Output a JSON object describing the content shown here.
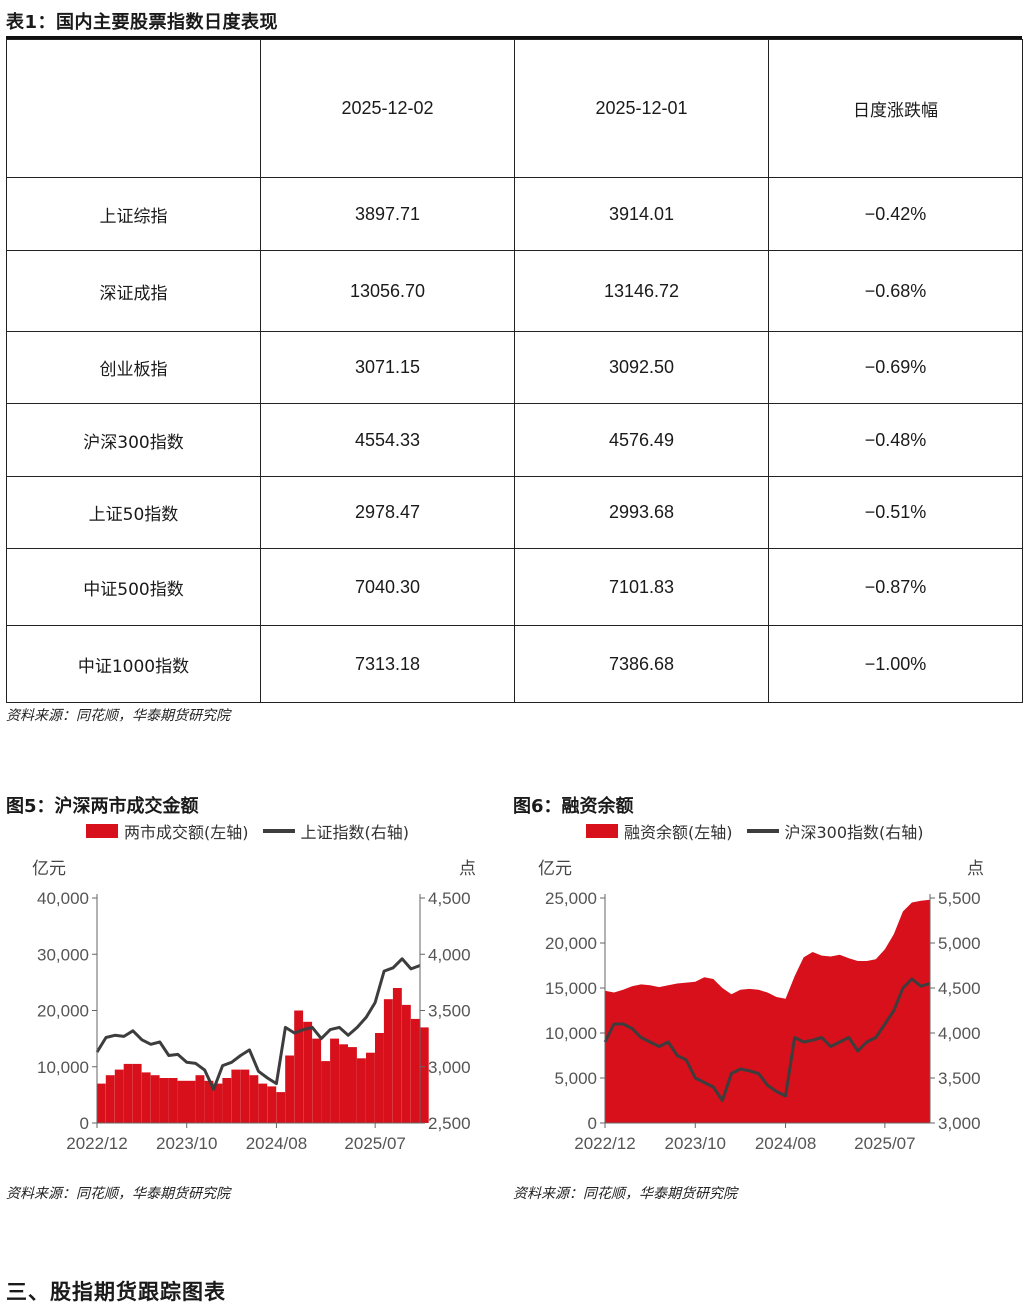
{
  "table": {
    "title": "表1：国内主要股票指数日度表现",
    "headers": [
      "",
      "2025-12-02",
      "2025-12-01",
      "日度涨跌幅"
    ],
    "rows": [
      [
        "上证综指",
        "3897.71",
        "3914.01",
        "−0.42%"
      ],
      [
        "深证成指",
        "13056.70",
        "13146.72",
        "−0.68%"
      ],
      [
        "创业板指",
        "3071.15",
        "3092.50",
        "−0.69%"
      ],
      [
        "沪深300指数",
        "4554.33",
        "4576.49",
        "−0.48%"
      ],
      [
        "上证50指数",
        "2978.47",
        "2993.68",
        "−0.51%"
      ],
      [
        "中证500指数",
        "7040.30",
        "7101.83",
        "−0.87%"
      ],
      [
        "中证1000指数",
        "7313.18",
        "7386.68",
        "−1.00%"
      ]
    ],
    "source": "资料来源：同花顺，华泰期货研究院"
  },
  "section_heading": "三、股指期货跟踪图表",
  "colors": {
    "bar": "#d7101b",
    "line": "#3d3d3d",
    "axis": "#666666",
    "text": "#555555"
  },
  "chart_data": [
    {
      "type": "bar",
      "title": "图5：沪深两市成交金额",
      "source": "资料来源：同花顺，华泰期货研究院",
      "left_unit": "亿元",
      "right_unit": "点",
      "x_ticks": [
        "2022/12",
        "2023/10",
        "2024/08",
        "2025/07"
      ],
      "x_range": [
        "2022-12",
        "2025-12"
      ],
      "y_left": {
        "min": 0,
        "max": 40000,
        "ticks": [
          "0",
          "10,000",
          "20,000",
          "30,000",
          "40,000"
        ]
      },
      "y_right": {
        "min": 2500,
        "max": 4500,
        "ticks": [
          "2,500",
          "3,000",
          "3,500",
          "4,000",
          "4,500"
        ]
      },
      "series": [
        {
          "name": "两市成交额(左轴)",
          "type": "bar",
          "axis": "left",
          "x": [
            "2022-12",
            "2023-01",
            "2023-02",
            "2023-03",
            "2023-04",
            "2023-05",
            "2023-06",
            "2023-07",
            "2023-08",
            "2023-09",
            "2023-10",
            "2023-11",
            "2023-12",
            "2024-01",
            "2024-02",
            "2024-03",
            "2024-04",
            "2024-05",
            "2024-06",
            "2024-07",
            "2024-08",
            "2024-09",
            "2024-10",
            "2024-11",
            "2024-12",
            "2025-01",
            "2025-02",
            "2025-03",
            "2025-04",
            "2025-05",
            "2025-06",
            "2025-07",
            "2025-08",
            "2025-09",
            "2025-10",
            "2025-11",
            "2025-12"
          ],
          "values": [
            7000,
            8500,
            9500,
            10500,
            10500,
            9000,
            8500,
            8000,
            8000,
            7500,
            7500,
            8500,
            7500,
            7000,
            8000,
            9500,
            9500,
            8500,
            7000,
            6500,
            5500,
            12000,
            20000,
            18000,
            15000,
            11000,
            15000,
            14000,
            13500,
            11500,
            12500,
            16000,
            22000,
            24000,
            21000,
            18500,
            17000
          ]
        },
        {
          "name": "上证指数(右轴)",
          "type": "line",
          "axis": "right",
          "x": [
            "2022-12",
            "2023-01",
            "2023-02",
            "2023-03",
            "2023-04",
            "2023-05",
            "2023-06",
            "2023-07",
            "2023-08",
            "2023-09",
            "2023-10",
            "2023-11",
            "2023-12",
            "2024-01",
            "2024-02",
            "2024-03",
            "2024-04",
            "2024-05",
            "2024-06",
            "2024-07",
            "2024-08",
            "2024-09",
            "2024-10",
            "2024-11",
            "2024-12",
            "2025-01",
            "2025-02",
            "2025-03",
            "2025-04",
            "2025-05",
            "2025-06",
            "2025-07",
            "2025-08",
            "2025-09",
            "2025-10",
            "2025-11",
            "2025-12"
          ],
          "values": [
            3130,
            3260,
            3280,
            3270,
            3320,
            3240,
            3200,
            3220,
            3100,
            3110,
            3040,
            3030,
            2970,
            2800,
            3010,
            3040,
            3100,
            3150,
            2960,
            2900,
            2850,
            3350,
            3300,
            3330,
            3350,
            3250,
            3330,
            3350,
            3280,
            3350,
            3440,
            3570,
            3850,
            3880,
            3960,
            3870,
            3900
          ]
        }
      ]
    },
    {
      "type": "area",
      "title": "图6：融资余额",
      "source": "资料来源：同花顺，华泰期货研究院",
      "left_unit": "亿元",
      "right_unit": "点",
      "x_ticks": [
        "2022/12",
        "2023/10",
        "2024/08",
        "2025/07"
      ],
      "x_range": [
        "2022-12",
        "2025-12"
      ],
      "y_left": {
        "min": 0,
        "max": 25000,
        "ticks": [
          "0",
          "5,000",
          "10,000",
          "15,000",
          "20,000",
          "25,000"
        ]
      },
      "y_right": {
        "min": 3000,
        "max": 5500,
        "ticks": [
          "3,000",
          "3,500",
          "4,000",
          "4,500",
          "5,000",
          "5,500"
        ]
      },
      "series": [
        {
          "name": "融资余额(左轴)",
          "type": "area",
          "axis": "left",
          "x": [
            "2022-12",
            "2023-01",
            "2023-02",
            "2023-03",
            "2023-04",
            "2023-05",
            "2023-06",
            "2023-07",
            "2023-08",
            "2023-09",
            "2023-10",
            "2023-11",
            "2023-12",
            "2024-01",
            "2024-02",
            "2024-03",
            "2024-04",
            "2024-05",
            "2024-06",
            "2024-07",
            "2024-08",
            "2024-09",
            "2024-10",
            "2024-11",
            "2024-12",
            "2025-01",
            "2025-02",
            "2025-03",
            "2025-04",
            "2025-05",
            "2025-06",
            "2025-07",
            "2025-08",
            "2025-09",
            "2025-10",
            "2025-11",
            "2025-12"
          ],
          "values": [
            14700,
            14500,
            14800,
            15200,
            15400,
            15300,
            15100,
            15300,
            15500,
            15600,
            15700,
            16200,
            16000,
            15000,
            14300,
            14800,
            14900,
            14800,
            14500,
            14000,
            13800,
            16300,
            18400,
            19000,
            18600,
            18500,
            18700,
            18300,
            18000,
            18000,
            18200,
            19300,
            21000,
            23500,
            24500,
            24700,
            24800
          ]
        },
        {
          "name": "沪深300指数(右轴)",
          "type": "line",
          "axis": "right",
          "x": [
            "2022-12",
            "2023-01",
            "2023-02",
            "2023-03",
            "2023-04",
            "2023-05",
            "2023-06",
            "2023-07",
            "2023-08",
            "2023-09",
            "2023-10",
            "2023-11",
            "2023-12",
            "2024-01",
            "2024-02",
            "2024-03",
            "2024-04",
            "2024-05",
            "2024-06",
            "2024-07",
            "2024-08",
            "2024-09",
            "2024-10",
            "2024-11",
            "2024-12",
            "2025-01",
            "2025-02",
            "2025-03",
            "2025-04",
            "2025-05",
            "2025-06",
            "2025-07",
            "2025-08",
            "2025-09",
            "2025-10",
            "2025-11",
            "2025-12"
          ],
          "values": [
            3900,
            4100,
            4100,
            4050,
            3950,
            3900,
            3850,
            3900,
            3750,
            3700,
            3500,
            3450,
            3400,
            3250,
            3550,
            3600,
            3580,
            3550,
            3420,
            3350,
            3300,
            3950,
            3900,
            3920,
            3950,
            3850,
            3900,
            3950,
            3800,
            3900,
            3950,
            4100,
            4250,
            4500,
            4600,
            4520,
            4550
          ]
        }
      ]
    }
  ]
}
